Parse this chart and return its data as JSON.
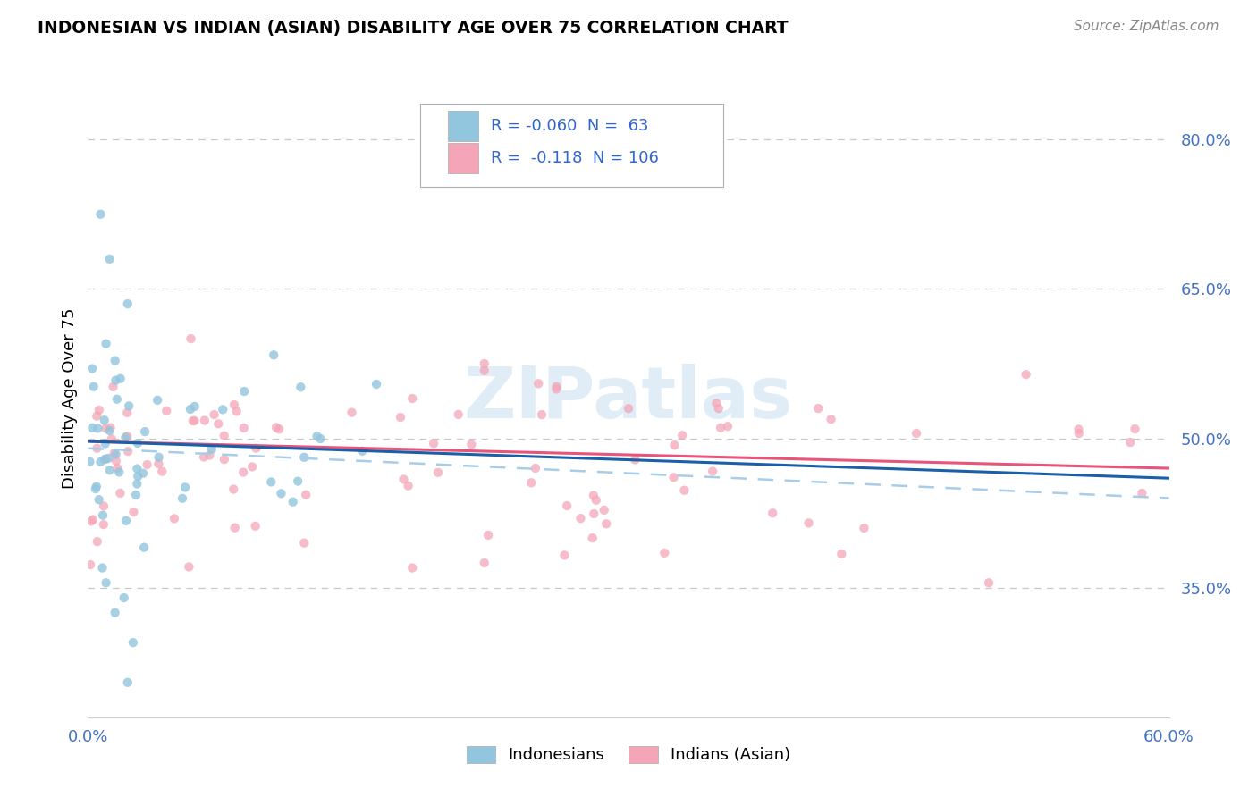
{
  "title": "INDONESIAN VS INDIAN (ASIAN) DISABILITY AGE OVER 75 CORRELATION CHART",
  "source": "Source: ZipAtlas.com",
  "ylabel": "Disability Age Over 75",
  "xlim": [
    0.0,
    0.6
  ],
  "ylim": [
    0.22,
    0.86
  ],
  "xtick_positions": [
    0.0,
    0.1,
    0.2,
    0.3,
    0.4,
    0.5,
    0.6
  ],
  "xticklabels": [
    "0.0%",
    "",
    "",
    "",
    "",
    "",
    "60.0%"
  ],
  "ytick_right_positions": [
    0.35,
    0.5,
    0.65,
    0.8
  ],
  "ytick_right_labels": [
    "35.0%",
    "50.0%",
    "65.0%",
    "80.0%"
  ],
  "watermark_text": "ZIPatlas",
  "blue_scatter_color": "#92c5de",
  "pink_scatter_color": "#f4a6b8",
  "blue_line_color": "#1a5fa8",
  "pink_line_color": "#e8547a",
  "dash_line_color": "#a8cde8",
  "legend_blue_color": "#92c5de",
  "legend_pink_color": "#f4a6b8",
  "legend_text_color": "#3366cc",
  "grid_color": "#c8c8c8",
  "right_axis_color": "#4472c4",
  "title_color": "#000000",
  "source_color": "#888888",
  "legend_r1": "R = -0.060",
  "legend_n1": "N =  63",
  "legend_r2": "R =  -0.118",
  "legend_n2": "N = 106",
  "blue_trend_start_y": 0.497,
  "blue_trend_end_y": 0.46,
  "pink_trend_start_y": 0.497,
  "pink_trend_end_y": 0.47,
  "dash_trend_start_y": 0.49,
  "dash_trend_end_y": 0.44
}
